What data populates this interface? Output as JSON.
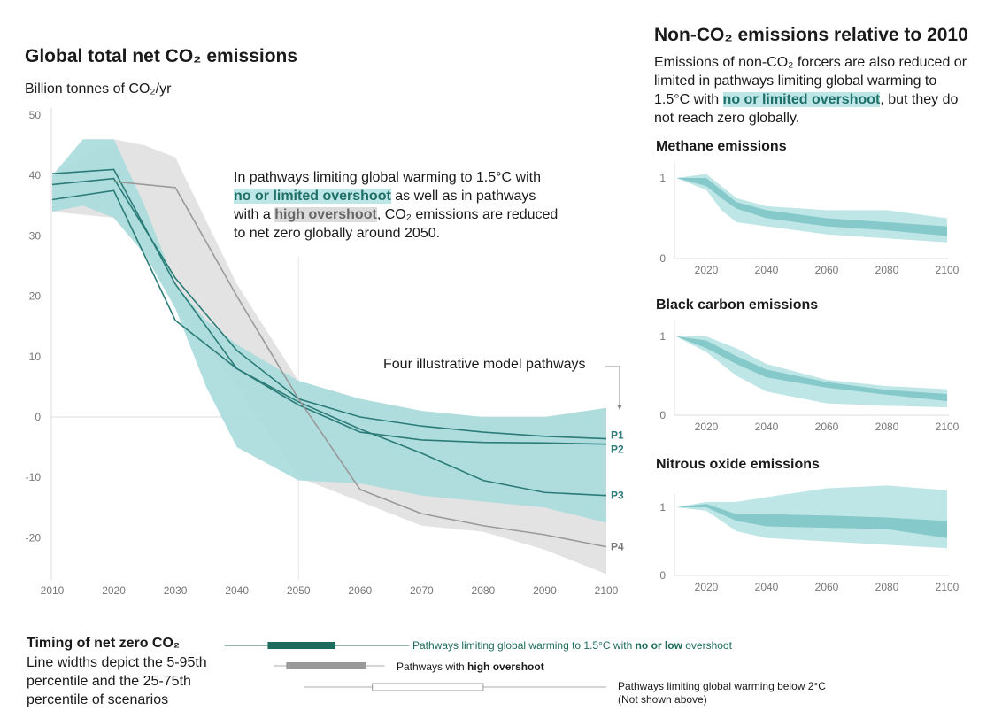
{
  "colors": {
    "teal_outer": "#a8dcdc",
    "teal_inner": "#7cc6c6",
    "teal_line": "#2b7c78",
    "grey_band": "#e3e3e3",
    "grey_line": "#9a9a9a",
    "dark_green": "#1d6b5c",
    "grey_bar": "#999999"
  },
  "main": {
    "title": "Global total net CO₂ emissions",
    "ylabel": "Billion tonnes of CO₂/yr",
    "annotation": {
      "p1": "In pathways limiting global warming to 1.5°C with ",
      "hl1": "no or limited overshoot",
      "p2": " as well as in pathways with a ",
      "hl2": "high overshoot",
      "p3": ", CO₂ emissions are reduced to net zero globally around 2050."
    },
    "pathways_label": "Four illustrative model pathways"
  },
  "right": {
    "title": "Non-CO₂ emissions relative to 2010",
    "desc": {
      "p1": "Emissions of non-CO₂ forcers are also reduced or limited in pathways limiting global warming to 1.5°C with ",
      "hl": "no or limited overshoot",
      "p2": ", but they do not reach zero globally."
    }
  },
  "chart_data": [
    {
      "type": "line",
      "title": "Global total net CO₂ emissions",
      "ylabel": "Billion tonnes of CO₂/yr",
      "xlim": [
        2010,
        2100
      ],
      "ylim": [
        -26,
        50
      ],
      "x_ticks": [
        2010,
        2020,
        2030,
        2040,
        2050,
        2060,
        2070,
        2080,
        2090,
        2100
      ],
      "y_ticks": [
        50,
        40,
        30,
        20,
        10,
        0,
        -10,
        -20
      ],
      "bands": [
        {
          "name": "high overshoot",
          "color": "#e3e3e3",
          "x": [
            2010,
            2020,
            2025,
            2030,
            2040,
            2050,
            2060,
            2070,
            2080,
            2090,
            2100
          ],
          "upper": [
            40,
            46,
            45,
            43,
            22,
            6,
            3,
            1,
            0,
            0,
            1.5
          ],
          "lower": [
            34,
            33,
            27,
            18,
            5,
            -10,
            -14,
            -18,
            -19,
            -22,
            -26
          ]
        },
        {
          "name": "no or limited overshoot",
          "color": "#a8dcdc",
          "x": [
            2010,
            2015,
            2020,
            2025,
            2030,
            2035,
            2040,
            2050,
            2060,
            2070,
            2080,
            2090,
            2100
          ],
          "upper": [
            40,
            46,
            46,
            35,
            22,
            16,
            12,
            6,
            3,
            1,
            0,
            0,
            1.5
          ],
          "lower": [
            34,
            35,
            33,
            27,
            18,
            5,
            -5,
            -10.5,
            -11,
            -13,
            -14,
            -15,
            -17.5
          ]
        }
      ],
      "x": [
        2010,
        2020,
        2030,
        2040,
        2050,
        2060,
        2070,
        2080,
        2090,
        2100
      ],
      "series": [
        {
          "name": "P1",
          "values": [
            38.5,
            39.5,
            23,
            11,
            3,
            0,
            -1.5,
            -2.5,
            -3.2,
            -3.6
          ]
        },
        {
          "name": "P2",
          "values": [
            40.3,
            41,
            22,
            8,
            2,
            -2.5,
            -3.8,
            -4.2,
            -4.3,
            -4.5
          ]
        },
        {
          "name": "P3",
          "values": [
            36,
            37.5,
            16,
            8,
            2.5,
            -2,
            -6,
            -10.5,
            -12.5,
            -13
          ]
        },
        {
          "name": "P4",
          "values": [
            null,
            39,
            38,
            20,
            3,
            -12,
            -16,
            -18,
            -19.5,
            -21.5
          ]
        }
      ]
    },
    {
      "type": "area",
      "title": "Methane emissions",
      "ylim": [
        0,
        1
      ],
      "y_ticks": [
        0,
        1
      ],
      "x_ticks": [
        2020,
        2040,
        2060,
        2080,
        2100
      ],
      "x": [
        2010,
        2020,
        2025,
        2030,
        2040,
        2060,
        2080,
        2100
      ],
      "outer_upper": [
        1,
        1.05,
        0.9,
        0.75,
        0.65,
        0.6,
        0.6,
        0.5
      ],
      "outer_lower": [
        1,
        0.85,
        0.6,
        0.45,
        0.4,
        0.3,
        0.25,
        0.2
      ],
      "inner_upper": [
        1,
        1.0,
        0.85,
        0.7,
        0.6,
        0.5,
        0.45,
        0.4
      ],
      "inner_lower": [
        1,
        0.9,
        0.75,
        0.62,
        0.5,
        0.4,
        0.35,
        0.28
      ]
    },
    {
      "type": "area",
      "title": "Black carbon emissions",
      "ylim": [
        0,
        1
      ],
      "y_ticks": [
        0,
        1
      ],
      "x_ticks": [
        2020,
        2040,
        2060,
        2080,
        2100
      ],
      "x": [
        2010,
        2020,
        2030,
        2040,
        2060,
        2080,
        2100
      ],
      "outer_upper": [
        1,
        1.0,
        0.85,
        0.65,
        0.45,
        0.37,
        0.33
      ],
      "outer_lower": [
        1,
        0.8,
        0.5,
        0.3,
        0.15,
        0.12,
        0.1
      ],
      "inner_upper": [
        1,
        0.95,
        0.75,
        0.58,
        0.42,
        0.32,
        0.27
      ],
      "inner_lower": [
        1,
        0.85,
        0.65,
        0.48,
        0.35,
        0.26,
        0.18
      ]
    },
    {
      "type": "area",
      "title": "Nitrous oxide emissions",
      "ylim": [
        0,
        1
      ],
      "y_ticks": [
        0,
        1
      ],
      "x_ticks": [
        2020,
        2040,
        2060,
        2080,
        2100
      ],
      "x": [
        2010,
        2020,
        2030,
        2040,
        2060,
        2080,
        2100
      ],
      "outer_upper": [
        1,
        1.08,
        1.08,
        1.15,
        1.28,
        1.32,
        1.25
      ],
      "outer_lower": [
        1,
        0.95,
        0.65,
        0.55,
        0.5,
        0.45,
        0.4
      ],
      "inner_upper": [
        1,
        1.05,
        0.9,
        0.9,
        0.88,
        0.85,
        0.8
      ],
      "inner_lower": [
        1,
        1.0,
        0.8,
        0.72,
        0.7,
        0.68,
        0.55
      ]
    }
  ],
  "timing": {
    "title": "Timing of net zero CO₂",
    "desc": "Line widths depict the 5-95th percentile and the 25-75th percentile of scenarios",
    "rows": [
      {
        "label_pre": "Pathways limiting global warming to 1.5°C with ",
        "label_bold": "no or low",
        "label_post": " overshoot",
        "p5": 2038,
        "p25": 2045,
        "p75": 2056,
        "p95": 2068
      },
      {
        "label_pre": "Pathways with ",
        "label_bold": "high overshoot",
        "label_post": "",
        "p5": 2046,
        "p25": 2048,
        "p75": 2061,
        "p95": 2064
      },
      {
        "label_pre": "Pathways limiting global warming below 2°C",
        "label_bold": "",
        "label_post": "",
        "note": "(Not shown above)",
        "p5": 2051,
        "p25": 2062,
        "p75": 2080,
        "p95": 2100
      }
    ]
  }
}
